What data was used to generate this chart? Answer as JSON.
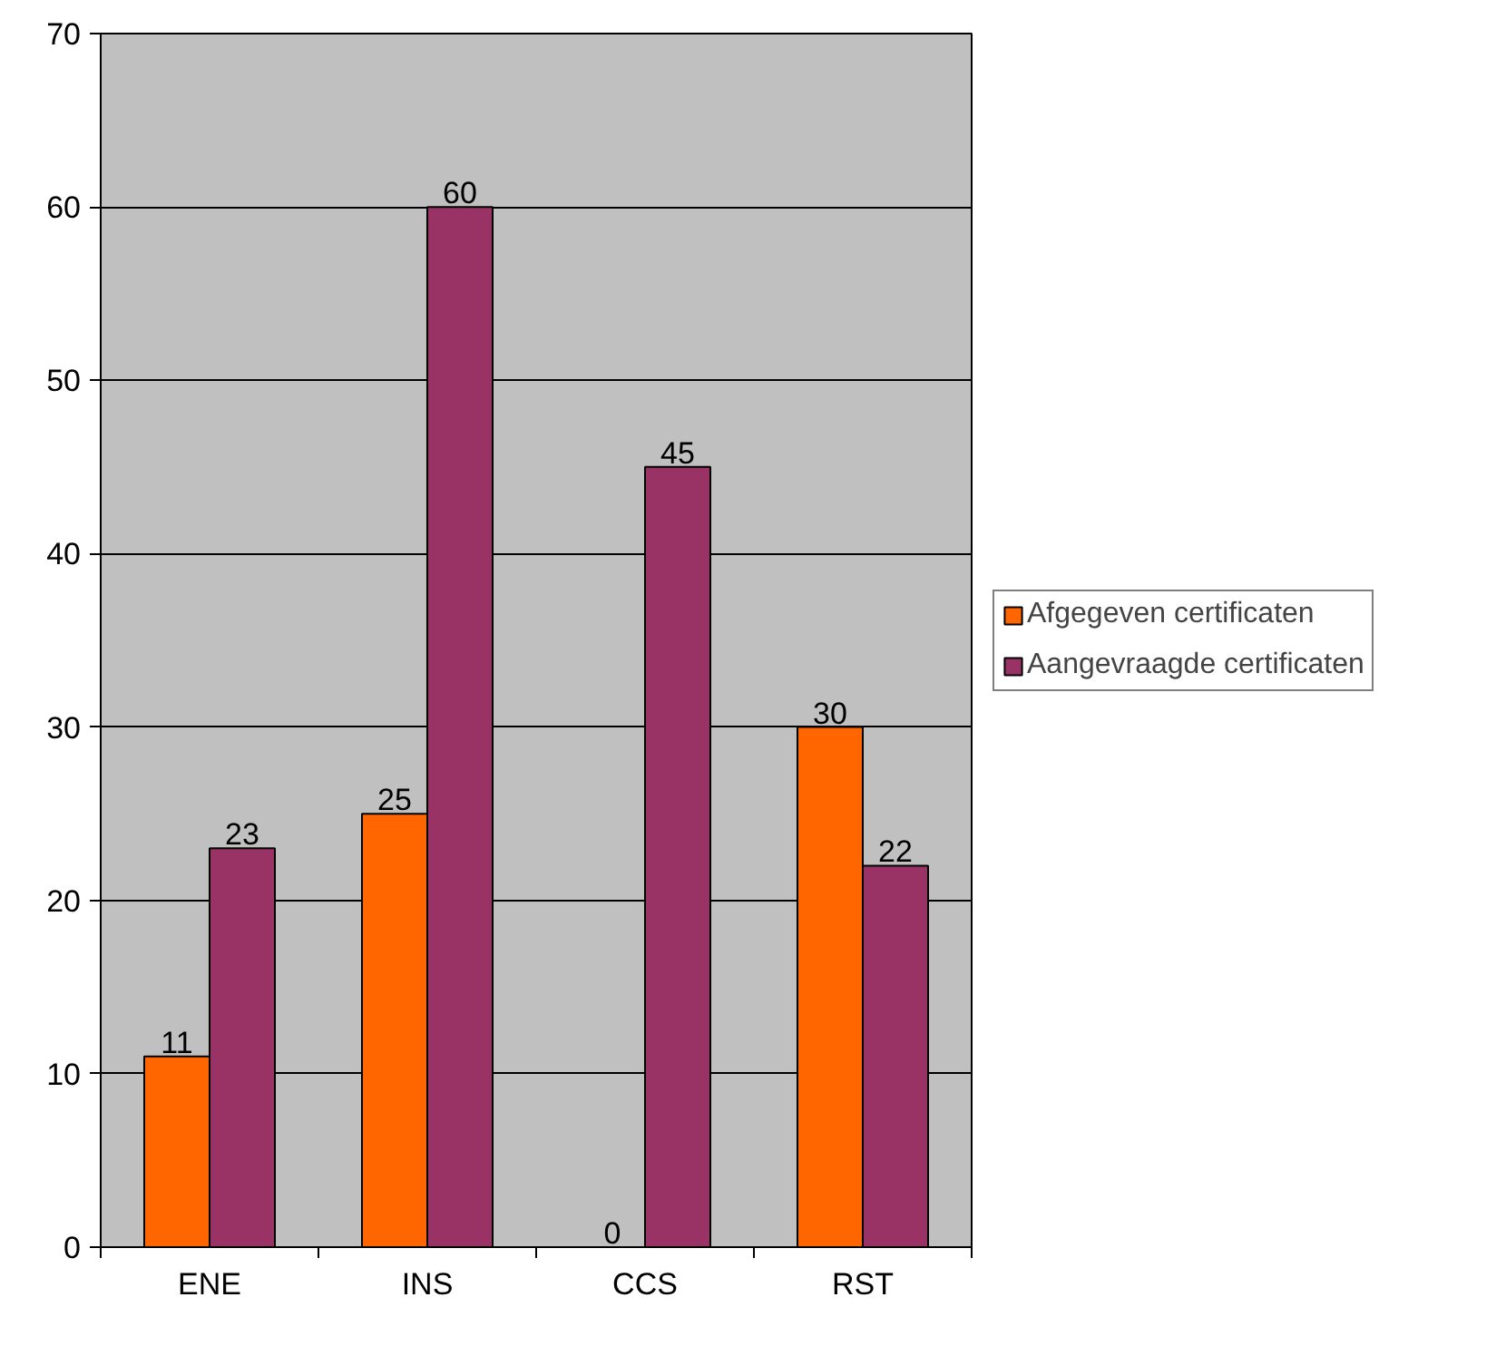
{
  "chart_data": {
    "type": "bar",
    "categories": [
      "ENE",
      "INS",
      "CCS",
      "RST"
    ],
    "series": [
      {
        "name": "Afgegeven certificaten",
        "color": "#ff6600",
        "values": [
          11,
          25,
          0,
          30
        ]
      },
      {
        "name": "Aangevraagde certificaten",
        "color": "#993366",
        "values": [
          23,
          60,
          45,
          22
        ]
      }
    ],
    "ylim": [
      0,
      70
    ],
    "yticks": [
      0,
      10,
      20,
      30,
      40,
      50,
      60,
      70
    ],
    "grid": "y",
    "legend": "right",
    "data_labels": true
  }
}
